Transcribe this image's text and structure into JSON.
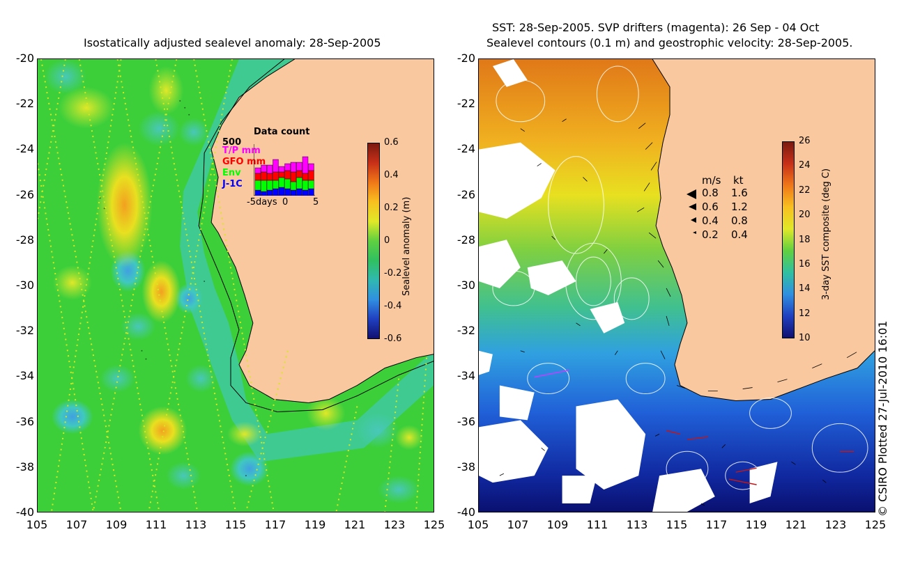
{
  "left_panel": {
    "title": "Isostatically adjusted sealevel anomaly: 28-Sep-2005",
    "y_ticks": [
      "-20",
      "-22",
      "-24",
      "-26",
      "-28",
      "-30",
      "-32",
      "-34",
      "-36",
      "-38",
      "-40"
    ],
    "x_ticks": [
      "105",
      "107",
      "109",
      "111",
      "113",
      "115",
      "117",
      "119",
      "121",
      "123",
      "125"
    ],
    "colorbar": {
      "label": "Sealevel anomaly (m)",
      "ticks": [
        "0.6",
        "0.4",
        "0.2",
        "0",
        "-0.2",
        "-0.4",
        "-0.6"
      ]
    },
    "inset": {
      "title": "Data count",
      "ymax": "500",
      "series": [
        {
          "name": "T/P mm",
          "color": "#ff00ff"
        },
        {
          "name": "GFO mm",
          "color": "#ff0000"
        },
        {
          "name": "Env",
          "color": "#00ff00"
        },
        {
          "name": "J-1C",
          "color": "#0000ff"
        }
      ],
      "x_left": "-5days",
      "x_mid": "0",
      "x_right": "5"
    }
  },
  "right_panel": {
    "title_line1": "SST: 28-Sep-2005. SVP drifters (magenta): 26 Sep - 04 Oct",
    "title_line2": "Sealevel contours (0.1 m) and geostrophic velocity: 28-Sep-2005.",
    "y_ticks": [
      "-20",
      "-22",
      "-24",
      "-26",
      "-28",
      "-30",
      "-32",
      "-34",
      "-36",
      "-38",
      "-40"
    ],
    "x_ticks": [
      "105",
      "107",
      "109",
      "111",
      "113",
      "115",
      "117",
      "119",
      "121",
      "123",
      "125"
    ],
    "colorbar": {
      "label": "3-day SST composite (deg C)",
      "ticks": [
        "26",
        "24",
        "22",
        "20",
        "18",
        "16",
        "14",
        "12",
        "10"
      ]
    },
    "velocity_legend": {
      "header_ms": "m/s",
      "header_kt": "kt",
      "rows": [
        {
          "ms": "0.8",
          "kt": "1.6"
        },
        {
          "ms": "0.6",
          "kt": "1.2"
        },
        {
          "ms": "0.4",
          "kt": "0.8"
        },
        {
          "ms": "0.2",
          "kt": "0.4"
        }
      ]
    }
  },
  "credit": "© CSIRO Plotted 27-Jul-2010 16:01",
  "colors": {
    "land": "#f9c89e",
    "ocean_left": "#3fd23a",
    "ocean_right_warm": "#f0a020"
  }
}
